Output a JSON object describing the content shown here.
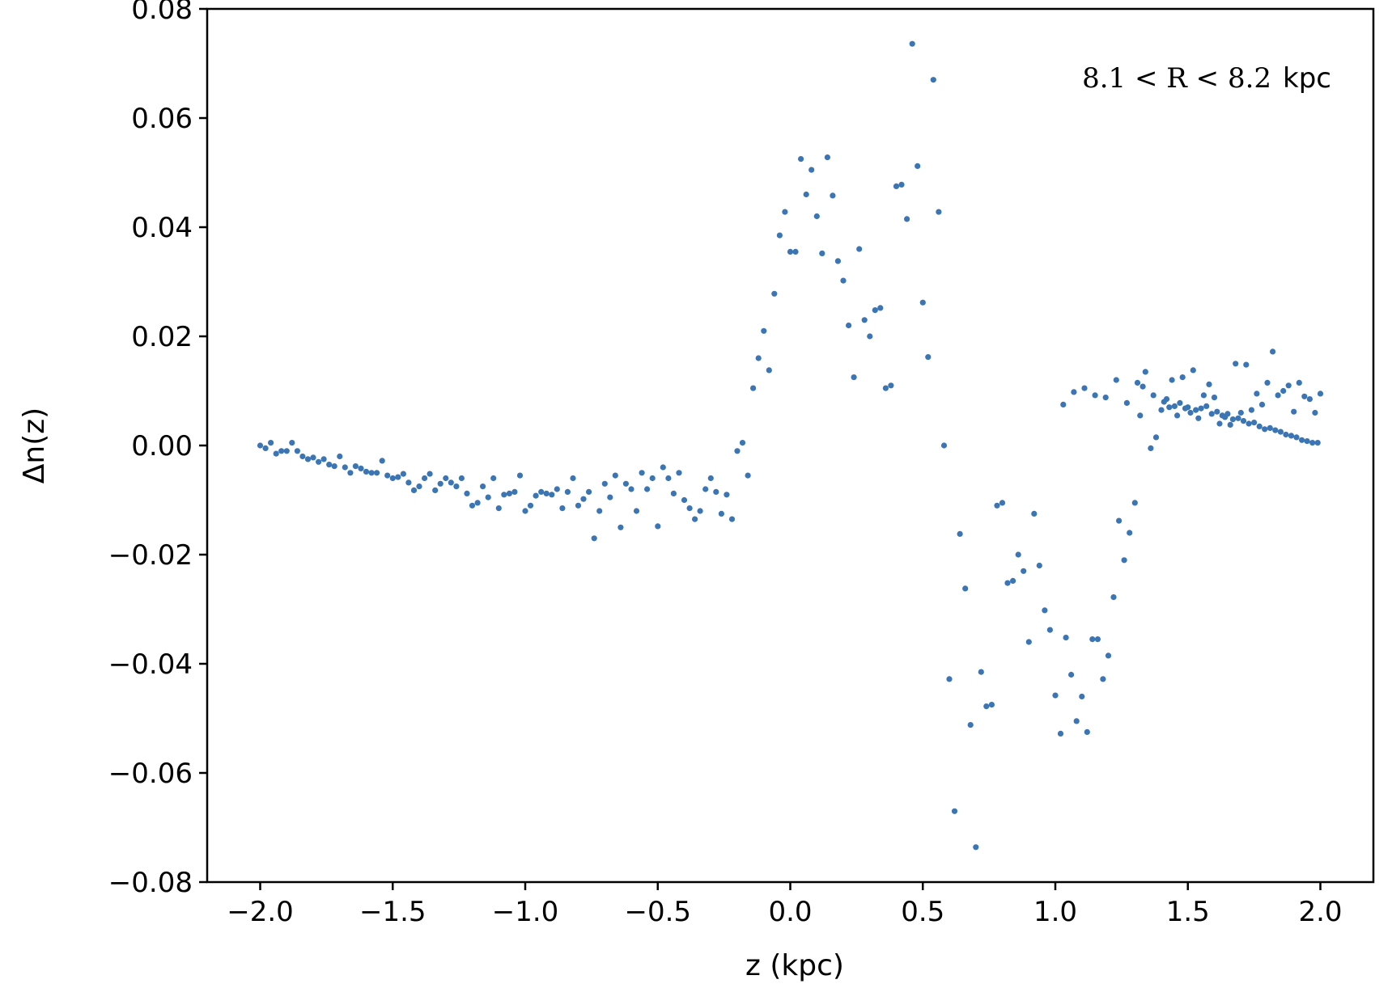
{
  "chart_data": {
    "type": "scatter",
    "xlabel": "z (kpc)",
    "ylabel": "Δn(z)",
    "annotation": {
      "math": "8.1 < R < 8.2",
      "unit": "kpc",
      "position": "top-right"
    },
    "xlim": [
      -2.2,
      2.2
    ],
    "ylim": [
      -0.08,
      0.08
    ],
    "x_ticks": [
      -2.0,
      -1.5,
      -1.0,
      -0.5,
      0.0,
      0.5,
      1.0,
      1.5,
      2.0
    ],
    "x_tick_labels": [
      "−2.0",
      "−1.5",
      "−1.0",
      "−0.5",
      "0.0",
      "0.5",
      "1.0",
      "1.5",
      "2.0"
    ],
    "y_ticks": [
      -0.08,
      -0.06,
      -0.04,
      -0.02,
      0.0,
      0.02,
      0.04,
      0.06,
      0.08
    ],
    "y_tick_labels": [
      "−0.08",
      "−0.06",
      "−0.04",
      "−0.02",
      "0.00",
      "0.02",
      "0.04",
      "0.06",
      "0.08"
    ],
    "grid": false,
    "marker_color": "#3b75b4",
    "series": [
      {
        "points": [
          [
            -2.0,
            0.0
          ],
          [
            -1.98,
            -0.0005
          ],
          [
            -1.96,
            0.0005
          ],
          [
            -1.94,
            -0.0015
          ],
          [
            -1.92,
            -0.001
          ],
          [
            -1.9,
            -0.001
          ],
          [
            -1.88,
            0.0005
          ],
          [
            -1.86,
            -0.001
          ],
          [
            -1.84,
            -0.002
          ],
          [
            -1.82,
            -0.0025
          ],
          [
            -1.8,
            -0.0022
          ],
          [
            -1.78,
            -0.003
          ],
          [
            -1.76,
            -0.0025
          ],
          [
            -1.74,
            -0.0035
          ],
          [
            -1.72,
            -0.0038
          ],
          [
            -1.7,
            -0.002
          ],
          [
            -1.68,
            -0.004
          ],
          [
            -1.66,
            -0.005
          ],
          [
            -1.64,
            -0.0038
          ],
          [
            -1.62,
            -0.0042
          ],
          [
            -1.6,
            -0.0048
          ],
          [
            -1.58,
            -0.005
          ],
          [
            -1.56,
            -0.005
          ],
          [
            -1.54,
            -0.0028
          ],
          [
            -1.52,
            -0.0055
          ],
          [
            -1.5,
            -0.006
          ],
          [
            -1.48,
            -0.0058
          ],
          [
            -1.46,
            -0.0052
          ],
          [
            -1.44,
            -0.0068
          ],
          [
            -1.42,
            -0.0082
          ],
          [
            -1.4,
            -0.0075
          ],
          [
            -1.38,
            -0.006
          ],
          [
            -1.36,
            -0.0052
          ],
          [
            -1.34,
            -0.0082
          ],
          [
            -1.32,
            -0.007
          ],
          [
            -1.3,
            -0.006
          ],
          [
            -1.28,
            -0.0068
          ],
          [
            -1.26,
            -0.0075
          ],
          [
            -1.24,
            -0.006
          ],
          [
            -1.22,
            -0.0088
          ],
          [
            -1.2,
            -0.011
          ],
          [
            -1.18,
            -0.0105
          ],
          [
            -1.16,
            -0.0075
          ],
          [
            -1.14,
            -0.0095
          ],
          [
            -1.12,
            -0.006
          ],
          [
            -1.1,
            -0.0115
          ],
          [
            -1.08,
            -0.009
          ],
          [
            -1.06,
            -0.0088
          ],
          [
            -1.04,
            -0.0085
          ],
          [
            -1.02,
            -0.0055
          ],
          [
            -1.0,
            -0.012
          ],
          [
            -0.98,
            -0.011
          ],
          [
            -0.96,
            -0.0092
          ],
          [
            -0.94,
            -0.0085
          ],
          [
            -0.92,
            -0.0088
          ],
          [
            -0.9,
            -0.009
          ],
          [
            -0.88,
            -0.008
          ],
          [
            -0.86,
            -0.0115
          ],
          [
            -0.84,
            -0.0085
          ],
          [
            -0.82,
            -0.006
          ],
          [
            -0.8,
            -0.011
          ],
          [
            -0.78,
            -0.0098
          ],
          [
            -0.76,
            -0.0085
          ],
          [
            -0.74,
            -0.017
          ],
          [
            -0.72,
            -0.012
          ],
          [
            -0.7,
            -0.007
          ],
          [
            -0.68,
            -0.0095
          ],
          [
            -0.66,
            -0.0055
          ],
          [
            -0.64,
            -0.015
          ],
          [
            -0.62,
            -0.007
          ],
          [
            -0.6,
            -0.008
          ],
          [
            -0.58,
            -0.012
          ],
          [
            -0.56,
            -0.005
          ],
          [
            -0.54,
            -0.008
          ],
          [
            -0.52,
            -0.006
          ],
          [
            -0.5,
            -0.0148
          ],
          [
            -0.48,
            -0.004
          ],
          [
            -0.46,
            -0.006
          ],
          [
            -0.44,
            -0.0088
          ],
          [
            -0.42,
            -0.005
          ],
          [
            -0.4,
            -0.01
          ],
          [
            -0.38,
            -0.0115
          ],
          [
            -0.36,
            -0.0135
          ],
          [
            -0.34,
            -0.012
          ],
          [
            -0.32,
            -0.008
          ],
          [
            -0.3,
            -0.006
          ],
          [
            -0.28,
            -0.0085
          ],
          [
            -0.26,
            -0.0125
          ],
          [
            -0.24,
            -0.009
          ],
          [
            -0.22,
            -0.0135
          ],
          [
            -0.2,
            -0.001
          ],
          [
            -0.18,
            0.0005
          ],
          [
            -0.16,
            -0.0055
          ],
          [
            -0.14,
            0.0105
          ],
          [
            -0.12,
            0.016
          ],
          [
            -0.1,
            0.021
          ],
          [
            -0.08,
            0.0138
          ],
          [
            -0.06,
            0.0278
          ],
          [
            -0.04,
            0.0385
          ],
          [
            -0.02,
            0.0428
          ],
          [
            0.0,
            0.0355
          ],
          [
            0.02,
            0.0355
          ],
          [
            0.04,
            0.0525
          ],
          [
            0.06,
            0.046
          ],
          [
            0.08,
            0.0505
          ],
          [
            0.1,
            0.042
          ],
          [
            0.12,
            0.0352
          ],
          [
            0.14,
            0.0528
          ],
          [
            0.16,
            0.0458
          ],
          [
            0.18,
            0.0338
          ],
          [
            0.2,
            0.0302
          ],
          [
            0.22,
            0.022
          ],
          [
            0.24,
            0.0125
          ],
          [
            0.26,
            0.036
          ],
          [
            0.28,
            0.023
          ],
          [
            0.3,
            0.02
          ],
          [
            0.32,
            0.0248
          ],
          [
            0.34,
            0.0252
          ],
          [
            0.36,
            0.0105
          ],
          [
            0.38,
            0.011
          ],
          [
            0.4,
            0.0475
          ],
          [
            0.42,
            0.0478
          ],
          [
            0.44,
            0.0415
          ],
          [
            0.46,
            0.0736
          ],
          [
            0.48,
            0.0512
          ],
          [
            0.5,
            0.0262
          ],
          [
            0.52,
            0.0162
          ],
          [
            0.54,
            0.067
          ],
          [
            0.56,
            0.0428
          ],
          [
            0.58,
            0.0
          ],
          [
            0.6,
            -0.0428
          ],
          [
            0.62,
            -0.067
          ],
          [
            0.64,
            -0.0162
          ],
          [
            0.66,
            -0.0262
          ],
          [
            0.68,
            -0.0512
          ],
          [
            0.7,
            -0.0736
          ],
          [
            0.72,
            -0.0415
          ],
          [
            0.74,
            -0.0478
          ],
          [
            0.76,
            -0.0475
          ],
          [
            0.78,
            -0.011
          ],
          [
            0.8,
            -0.0105
          ],
          [
            0.82,
            -0.0252
          ],
          [
            0.84,
            -0.0248
          ],
          [
            0.86,
            -0.02
          ],
          [
            0.88,
            -0.023
          ],
          [
            0.9,
            -0.036
          ],
          [
            0.92,
            -0.0125
          ],
          [
            0.94,
            -0.022
          ],
          [
            0.96,
            -0.0302
          ],
          [
            0.98,
            -0.0338
          ],
          [
            1.0,
            -0.0458
          ],
          [
            1.02,
            -0.0528
          ],
          [
            1.04,
            -0.0352
          ],
          [
            1.06,
            -0.042
          ],
          [
            1.08,
            -0.0505
          ],
          [
            1.1,
            -0.046
          ],
          [
            1.12,
            -0.0525
          ],
          [
            1.14,
            -0.0355
          ],
          [
            1.16,
            -0.0355
          ],
          [
            1.18,
            -0.0428
          ],
          [
            1.2,
            -0.0385
          ],
          [
            1.22,
            -0.0278
          ],
          [
            1.24,
            -0.0138
          ],
          [
            1.26,
            -0.021
          ],
          [
            1.28,
            -0.016
          ],
          [
            1.3,
            -0.0105
          ],
          [
            1.32,
            0.0055
          ],
          [
            1.34,
            0.0135
          ],
          [
            1.36,
            -0.0005
          ],
          [
            1.38,
            0.0015
          ],
          [
            1.4,
            0.0065
          ],
          [
            1.42,
            0.0085
          ],
          [
            1.44,
            0.012
          ],
          [
            1.46,
            0.0055
          ],
          [
            1.48,
            0.0125
          ],
          [
            1.5,
            0.007
          ],
          [
            1.52,
            0.0138
          ],
          [
            1.54,
            0.005
          ],
          [
            1.56,
            0.0092
          ],
          [
            1.58,
            0.0112
          ],
          [
            1.6,
            0.0088
          ],
          [
            1.62,
            0.004
          ],
          [
            1.64,
            0.0052
          ],
          [
            1.66,
            0.0038
          ],
          [
            1.68,
            0.015
          ],
          [
            1.7,
            0.006
          ],
          [
            1.72,
            0.0148
          ],
          [
            1.74,
            0.0065
          ],
          [
            1.76,
            0.0095
          ],
          [
            1.78,
            0.0075
          ],
          [
            1.8,
            0.0115
          ],
          [
            1.82,
            0.0172
          ],
          [
            1.84,
            0.0092
          ],
          [
            1.86,
            0.01
          ],
          [
            1.88,
            0.011
          ],
          [
            1.9,
            0.0062
          ],
          [
            1.92,
            0.0115
          ],
          [
            1.94,
            0.009
          ],
          [
            1.96,
            0.0085
          ],
          [
            1.98,
            0.006
          ],
          [
            2.0,
            0.0095
          ],
          [
            1.03,
            0.0075
          ],
          [
            1.07,
            0.0098
          ],
          [
            1.11,
            0.0105
          ],
          [
            1.15,
            0.0092
          ],
          [
            1.19,
            0.0088
          ],
          [
            1.23,
            0.012
          ],
          [
            1.27,
            0.0078
          ],
          [
            1.31,
            0.0115
          ],
          [
            1.33,
            0.0108
          ],
          [
            1.37,
            0.0092
          ],
          [
            1.41,
            0.008
          ],
          [
            1.43,
            0.007
          ],
          [
            1.45,
            0.0072
          ],
          [
            1.47,
            0.0078
          ],
          [
            1.49,
            0.0068
          ],
          [
            1.51,
            0.006
          ],
          [
            1.53,
            0.0065
          ],
          [
            1.55,
            0.0068
          ],
          [
            1.57,
            0.0072
          ],
          [
            1.59,
            0.0058
          ],
          [
            1.61,
            0.0062
          ],
          [
            1.63,
            0.0055
          ],
          [
            1.65,
            0.0058
          ],
          [
            1.67,
            0.0048
          ],
          [
            1.69,
            0.005
          ],
          [
            1.71,
            0.0045
          ],
          [
            1.73,
            0.004
          ],
          [
            1.75,
            0.0042
          ],
          [
            1.77,
            0.0035
          ],
          [
            1.79,
            0.003
          ],
          [
            1.81,
            0.0032
          ],
          [
            1.83,
            0.0028
          ],
          [
            1.85,
            0.0025
          ],
          [
            1.87,
            0.002
          ],
          [
            1.89,
            0.0018
          ],
          [
            1.91,
            0.0015
          ],
          [
            1.93,
            0.001
          ],
          [
            1.95,
            0.0008
          ],
          [
            1.97,
            0.0005
          ],
          [
            1.99,
            0.0005
          ]
        ]
      }
    ]
  }
}
